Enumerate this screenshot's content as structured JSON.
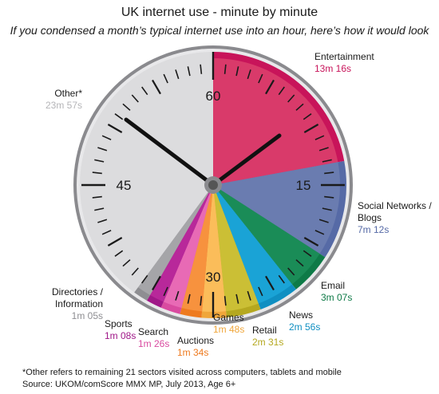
{
  "header": {
    "title": "UK internet use - minute by minute",
    "subtitle": "If you condensed a month’s typical internet use into an hour, here’s how it would look"
  },
  "footer": {
    "footnote": "*Other refers to remaining 21 sectors visited across computers, tablets and mobile",
    "source": "Source: UKOM/comScore MMX MP, July 2013, Age 6+"
  },
  "dial_numbers": [
    "60",
    "15",
    "30",
    "45"
  ],
  "chart_data": {
    "type": "pie",
    "title": "UK internet use - minute by minute",
    "unit": "minutes of a 60-minute hour",
    "slices": [
      {
        "name": "Entertainment",
        "time": "13m 16s",
        "value": 13.267,
        "color": "#d93a6a",
        "rim": "#c8145a"
      },
      {
        "name": "Social Networks / Blogs",
        "time": "7m 12s",
        "value": 7.2,
        "color": "#6a7cb0",
        "rim": "#566aa6"
      },
      {
        "name": "Email",
        "time": "3m 07s",
        "value": 3.117,
        "color": "#1a8c57",
        "rim": "#0e7a47"
      },
      {
        "name": "News",
        "time": "2m 56s",
        "value": 2.933,
        "color": "#1aa3d6",
        "rim": "#0f8fc2"
      },
      {
        "name": "Retail",
        "time": "2m 31s",
        "value": 2.517,
        "color": "#cbbf35",
        "rim": "#b5a81f"
      },
      {
        "name": "Games",
        "time": "1m 48s",
        "value": 1.8,
        "color": "#fbbd5a",
        "rim": "#f0a63a"
      },
      {
        "name": "Auctions",
        "time": "1m 34s",
        "value": 1.567,
        "color": "#f7923e",
        "rim": "#ee7a1f"
      },
      {
        "name": "Search",
        "time": "1m 26s",
        "value": 1.433,
        "color": "#e86ab5",
        "rim": "#d94ba0"
      },
      {
        "name": "Sports",
        "time": "1m 08s",
        "value": 1.133,
        "color": "#b8289a",
        "rim": "#a01888"
      },
      {
        "name": "Directories / Information",
        "time": "1m 05s",
        "value": 1.083,
        "color": "#a5a5a8",
        "rim": "#8e8e92"
      },
      {
        "name": "Other*",
        "time": "23m 57s",
        "value": 23.95,
        "color": "#dcdcde",
        "rim": "#dcdcde"
      }
    ]
  }
}
